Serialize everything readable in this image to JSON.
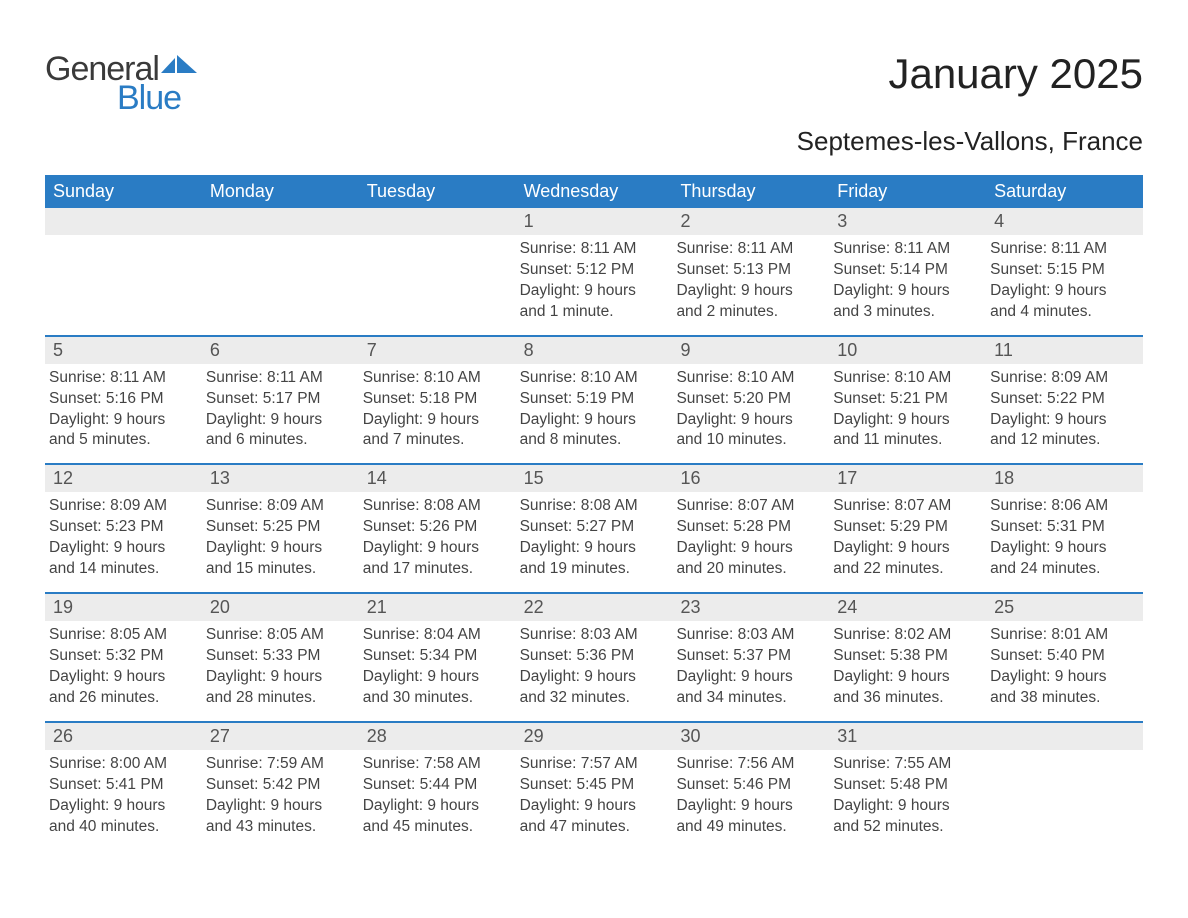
{
  "logo": {
    "text1": "General",
    "text2": "Blue",
    "color_general": "#3a3a3a",
    "color_blue": "#2a7cc4",
    "graphic_color": "#2a7cc4"
  },
  "title": "January 2025",
  "subtitle": "Septemes-les-Vallons, France",
  "colors": {
    "header_bg": "#2a7cc4",
    "header_text": "#ffffff",
    "daybar_bg": "#ececec",
    "daybar_text": "#555555",
    "body_text": "#444444",
    "week_border": "#2a7cc4",
    "background": "#ffffff"
  },
  "day_headers": [
    "Sunday",
    "Monday",
    "Tuesday",
    "Wednesday",
    "Thursday",
    "Friday",
    "Saturday"
  ],
  "weeks": [
    [
      {
        "num": "",
        "sunrise": "",
        "sunset": "",
        "daylight1": "",
        "daylight2": ""
      },
      {
        "num": "",
        "sunrise": "",
        "sunset": "",
        "daylight1": "",
        "daylight2": ""
      },
      {
        "num": "",
        "sunrise": "",
        "sunset": "",
        "daylight1": "",
        "daylight2": ""
      },
      {
        "num": "1",
        "sunrise": "Sunrise: 8:11 AM",
        "sunset": "Sunset: 5:12 PM",
        "daylight1": "Daylight: 9 hours",
        "daylight2": "and 1 minute."
      },
      {
        "num": "2",
        "sunrise": "Sunrise: 8:11 AM",
        "sunset": "Sunset: 5:13 PM",
        "daylight1": "Daylight: 9 hours",
        "daylight2": "and 2 minutes."
      },
      {
        "num": "3",
        "sunrise": "Sunrise: 8:11 AM",
        "sunset": "Sunset: 5:14 PM",
        "daylight1": "Daylight: 9 hours",
        "daylight2": "and 3 minutes."
      },
      {
        "num": "4",
        "sunrise": "Sunrise: 8:11 AM",
        "sunset": "Sunset: 5:15 PM",
        "daylight1": "Daylight: 9 hours",
        "daylight2": "and 4 minutes."
      }
    ],
    [
      {
        "num": "5",
        "sunrise": "Sunrise: 8:11 AM",
        "sunset": "Sunset: 5:16 PM",
        "daylight1": "Daylight: 9 hours",
        "daylight2": "and 5 minutes."
      },
      {
        "num": "6",
        "sunrise": "Sunrise: 8:11 AM",
        "sunset": "Sunset: 5:17 PM",
        "daylight1": "Daylight: 9 hours",
        "daylight2": "and 6 minutes."
      },
      {
        "num": "7",
        "sunrise": "Sunrise: 8:10 AM",
        "sunset": "Sunset: 5:18 PM",
        "daylight1": "Daylight: 9 hours",
        "daylight2": "and 7 minutes."
      },
      {
        "num": "8",
        "sunrise": "Sunrise: 8:10 AM",
        "sunset": "Sunset: 5:19 PM",
        "daylight1": "Daylight: 9 hours",
        "daylight2": "and 8 minutes."
      },
      {
        "num": "9",
        "sunrise": "Sunrise: 8:10 AM",
        "sunset": "Sunset: 5:20 PM",
        "daylight1": "Daylight: 9 hours",
        "daylight2": "and 10 minutes."
      },
      {
        "num": "10",
        "sunrise": "Sunrise: 8:10 AM",
        "sunset": "Sunset: 5:21 PM",
        "daylight1": "Daylight: 9 hours",
        "daylight2": "and 11 minutes."
      },
      {
        "num": "11",
        "sunrise": "Sunrise: 8:09 AM",
        "sunset": "Sunset: 5:22 PM",
        "daylight1": "Daylight: 9 hours",
        "daylight2": "and 12 minutes."
      }
    ],
    [
      {
        "num": "12",
        "sunrise": "Sunrise: 8:09 AM",
        "sunset": "Sunset: 5:23 PM",
        "daylight1": "Daylight: 9 hours",
        "daylight2": "and 14 minutes."
      },
      {
        "num": "13",
        "sunrise": "Sunrise: 8:09 AM",
        "sunset": "Sunset: 5:25 PM",
        "daylight1": "Daylight: 9 hours",
        "daylight2": "and 15 minutes."
      },
      {
        "num": "14",
        "sunrise": "Sunrise: 8:08 AM",
        "sunset": "Sunset: 5:26 PM",
        "daylight1": "Daylight: 9 hours",
        "daylight2": "and 17 minutes."
      },
      {
        "num": "15",
        "sunrise": "Sunrise: 8:08 AM",
        "sunset": "Sunset: 5:27 PM",
        "daylight1": "Daylight: 9 hours",
        "daylight2": "and 19 minutes."
      },
      {
        "num": "16",
        "sunrise": "Sunrise: 8:07 AM",
        "sunset": "Sunset: 5:28 PM",
        "daylight1": "Daylight: 9 hours",
        "daylight2": "and 20 minutes."
      },
      {
        "num": "17",
        "sunrise": "Sunrise: 8:07 AM",
        "sunset": "Sunset: 5:29 PM",
        "daylight1": "Daylight: 9 hours",
        "daylight2": "and 22 minutes."
      },
      {
        "num": "18",
        "sunrise": "Sunrise: 8:06 AM",
        "sunset": "Sunset: 5:31 PM",
        "daylight1": "Daylight: 9 hours",
        "daylight2": "and 24 minutes."
      }
    ],
    [
      {
        "num": "19",
        "sunrise": "Sunrise: 8:05 AM",
        "sunset": "Sunset: 5:32 PM",
        "daylight1": "Daylight: 9 hours",
        "daylight2": "and 26 minutes."
      },
      {
        "num": "20",
        "sunrise": "Sunrise: 8:05 AM",
        "sunset": "Sunset: 5:33 PM",
        "daylight1": "Daylight: 9 hours",
        "daylight2": "and 28 minutes."
      },
      {
        "num": "21",
        "sunrise": "Sunrise: 8:04 AM",
        "sunset": "Sunset: 5:34 PM",
        "daylight1": "Daylight: 9 hours",
        "daylight2": "and 30 minutes."
      },
      {
        "num": "22",
        "sunrise": "Sunrise: 8:03 AM",
        "sunset": "Sunset: 5:36 PM",
        "daylight1": "Daylight: 9 hours",
        "daylight2": "and 32 minutes."
      },
      {
        "num": "23",
        "sunrise": "Sunrise: 8:03 AM",
        "sunset": "Sunset: 5:37 PM",
        "daylight1": "Daylight: 9 hours",
        "daylight2": "and 34 minutes."
      },
      {
        "num": "24",
        "sunrise": "Sunrise: 8:02 AM",
        "sunset": "Sunset: 5:38 PM",
        "daylight1": "Daylight: 9 hours",
        "daylight2": "and 36 minutes."
      },
      {
        "num": "25",
        "sunrise": "Sunrise: 8:01 AM",
        "sunset": "Sunset: 5:40 PM",
        "daylight1": "Daylight: 9 hours",
        "daylight2": "and 38 minutes."
      }
    ],
    [
      {
        "num": "26",
        "sunrise": "Sunrise: 8:00 AM",
        "sunset": "Sunset: 5:41 PM",
        "daylight1": "Daylight: 9 hours",
        "daylight2": "and 40 minutes."
      },
      {
        "num": "27",
        "sunrise": "Sunrise: 7:59 AM",
        "sunset": "Sunset: 5:42 PM",
        "daylight1": "Daylight: 9 hours",
        "daylight2": "and 43 minutes."
      },
      {
        "num": "28",
        "sunrise": "Sunrise: 7:58 AM",
        "sunset": "Sunset: 5:44 PM",
        "daylight1": "Daylight: 9 hours",
        "daylight2": "and 45 minutes."
      },
      {
        "num": "29",
        "sunrise": "Sunrise: 7:57 AM",
        "sunset": "Sunset: 5:45 PM",
        "daylight1": "Daylight: 9 hours",
        "daylight2": "and 47 minutes."
      },
      {
        "num": "30",
        "sunrise": "Sunrise: 7:56 AM",
        "sunset": "Sunset: 5:46 PM",
        "daylight1": "Daylight: 9 hours",
        "daylight2": "and 49 minutes."
      },
      {
        "num": "31",
        "sunrise": "Sunrise: 7:55 AM",
        "sunset": "Sunset: 5:48 PM",
        "daylight1": "Daylight: 9 hours",
        "daylight2": "and 52 minutes."
      },
      {
        "num": "",
        "sunrise": "",
        "sunset": "",
        "daylight1": "",
        "daylight2": ""
      }
    ]
  ]
}
